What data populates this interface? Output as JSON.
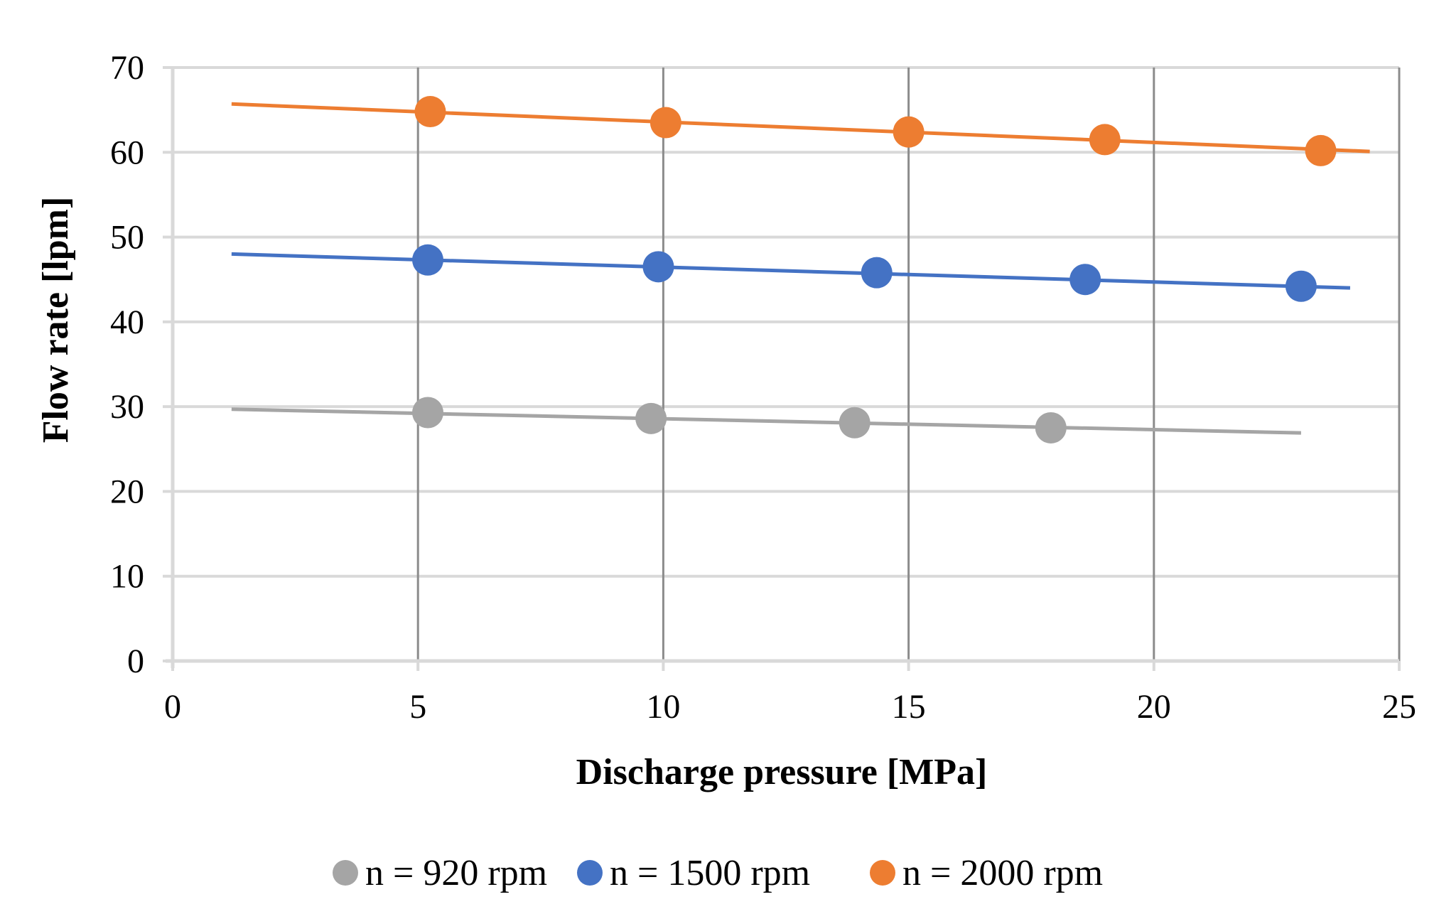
{
  "chart_data": {
    "type": "scatter",
    "title": "",
    "xlabel": "Discharge pressure [MPa]",
    "ylabel": "Flow rate [lpm]",
    "xlim": [
      0,
      25
    ],
    "ylim": [
      0,
      70
    ],
    "xticks": [
      0,
      5,
      10,
      15,
      20,
      25
    ],
    "yticks": [
      0,
      10,
      20,
      30,
      40,
      50,
      60,
      70
    ],
    "x_grid": true,
    "y_grid": true,
    "legend_position": "bottom",
    "series": [
      {
        "name": "n = 920 rpm",
        "color": "#a5a5a5",
        "points": [
          [
            5.2,
            29.3
          ],
          [
            9.75,
            28.6
          ],
          [
            13.9,
            28.1
          ],
          [
            17.9,
            27.5
          ]
        ],
        "trendline": [
          [
            1.2,
            29.7
          ],
          [
            23.0,
            26.9
          ]
        ]
      },
      {
        "name": "n = 1500 rpm",
        "color": "#4472c4",
        "points": [
          [
            5.2,
            47.3
          ],
          [
            9.9,
            46.5
          ],
          [
            14.35,
            45.8
          ],
          [
            18.6,
            45.0
          ],
          [
            23.0,
            44.2
          ]
        ],
        "trendline": [
          [
            1.2,
            48.0
          ],
          [
            24.0,
            44.0
          ]
        ]
      },
      {
        "name": "n = 2000 rpm",
        "color": "#ed7d31",
        "points": [
          [
            5.25,
            64.8
          ],
          [
            10.05,
            63.5
          ],
          [
            15.0,
            62.4
          ],
          [
            19.0,
            61.5
          ],
          [
            23.4,
            60.2
          ]
        ],
        "trendline": [
          [
            1.2,
            65.7
          ],
          [
            24.4,
            60.1
          ]
        ]
      }
    ]
  }
}
